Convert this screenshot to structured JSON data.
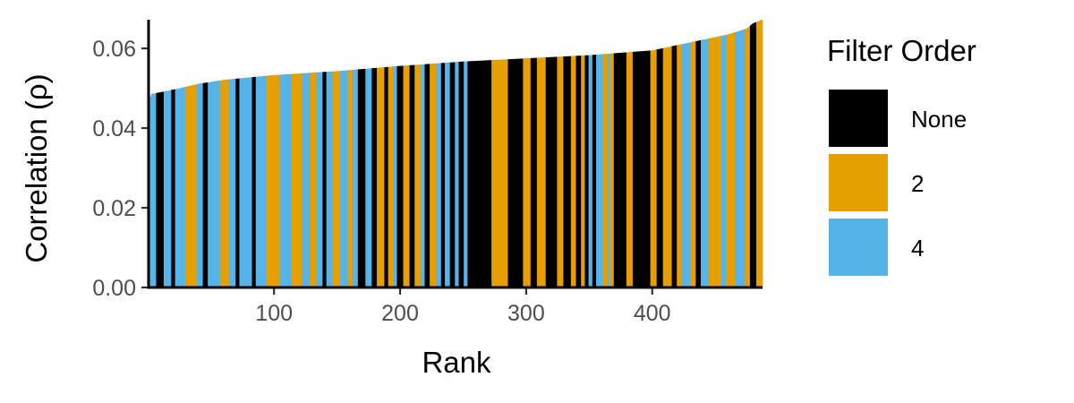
{
  "chart_data": {
    "type": "bar",
    "title": "",
    "xlabel": "Rank",
    "ylabel": "Correlation (ρ)",
    "xlim": [
      0.5,
      487.5
    ],
    "ylim": [
      0,
      0.0672
    ],
    "x_ticks": [
      100,
      200,
      300,
      400
    ],
    "y_ticks": [
      0,
      0.02,
      0.04,
      0.06
    ],
    "x_tick_labels": [
      "100",
      "200",
      "300",
      "400"
    ],
    "y_tick_labels": [
      "0.00",
      "0.02",
      "0.04",
      "0.06"
    ],
    "grid": false,
    "legend": {
      "title": "Filter Order",
      "placement": "right",
      "entries": [
        {
          "key": "None",
          "label": "None",
          "color": "#000000"
        },
        {
          "key": "2",
          "label": "2",
          "color": "#E69F00"
        },
        {
          "key": "4",
          "label": "4",
          "color": "#56B4E9"
        }
      ]
    },
    "n_bars": 487,
    "value_profile": [
      [
        1,
        0.0474
      ],
      [
        3,
        0.0486
      ],
      [
        10,
        0.049
      ],
      [
        25,
        0.05
      ],
      [
        40,
        0.0511
      ],
      [
        60,
        0.0521
      ],
      [
        100,
        0.0533
      ],
      [
        150,
        0.0543
      ],
      [
        200,
        0.0556
      ],
      [
        250,
        0.0567
      ],
      [
        300,
        0.0575
      ],
      [
        350,
        0.0583
      ],
      [
        400,
        0.0595
      ],
      [
        430,
        0.0615
      ],
      [
        460,
        0.0635
      ],
      [
        475,
        0.065
      ],
      [
        480,
        0.0663
      ],
      [
        487,
        0.0672
      ]
    ],
    "category_runs": [
      [
        "4",
        1,
        6
      ],
      [
        "None",
        7,
        12
      ],
      [
        "4",
        13,
        18
      ],
      [
        "None",
        19,
        21
      ],
      [
        "4",
        22,
        29
      ],
      [
        "2",
        30,
        38
      ],
      [
        "4",
        39,
        43
      ],
      [
        "None",
        44,
        47
      ],
      [
        "4",
        48,
        57
      ],
      [
        "2",
        58,
        64
      ],
      [
        "4",
        65,
        69
      ],
      [
        "None",
        70,
        72
      ],
      [
        "4",
        73,
        82
      ],
      [
        "None",
        83,
        85
      ],
      [
        "4",
        86,
        93
      ],
      [
        "2",
        94,
        104
      ],
      [
        "4",
        105,
        113
      ],
      [
        "2",
        114,
        122
      ],
      [
        "4",
        123,
        128
      ],
      [
        "2",
        129,
        133
      ],
      [
        "4",
        134,
        138
      ],
      [
        "None",
        139,
        141
      ],
      [
        "4",
        142,
        146
      ],
      [
        "2",
        147,
        152
      ],
      [
        "4",
        153,
        158
      ],
      [
        "2",
        159,
        162
      ],
      [
        "4",
        163,
        166
      ],
      [
        "None",
        167,
        172
      ],
      [
        "4",
        173,
        177
      ],
      [
        "None",
        178,
        181
      ],
      [
        "2",
        182,
        187
      ],
      [
        "None",
        188,
        190
      ],
      [
        "2",
        191,
        194
      ],
      [
        "4",
        195,
        197
      ],
      [
        "None",
        198,
        202
      ],
      [
        "2",
        203,
        207
      ],
      [
        "None",
        208,
        211
      ],
      [
        "2",
        212,
        216
      ],
      [
        "4",
        217,
        219
      ],
      [
        "None",
        220,
        223
      ],
      [
        "2",
        224,
        228
      ],
      [
        "4",
        229,
        232
      ],
      [
        "None",
        233,
        235
      ],
      [
        "4",
        236,
        239
      ],
      [
        "None",
        240,
        243
      ],
      [
        "4",
        244,
        246
      ],
      [
        "None",
        247,
        250
      ],
      [
        "4",
        251,
        253
      ],
      [
        "None",
        254,
        272
      ],
      [
        "2",
        273,
        285
      ],
      [
        "None",
        286,
        297
      ],
      [
        "2",
        298,
        303
      ],
      [
        "None",
        304,
        308
      ],
      [
        "2",
        309,
        315
      ],
      [
        "None",
        316,
        324
      ],
      [
        "2",
        325,
        329
      ],
      [
        "None",
        330,
        335
      ],
      [
        "2",
        336,
        339
      ],
      [
        "None",
        340,
        343
      ],
      [
        "2",
        344,
        346
      ],
      [
        "None",
        347,
        349
      ],
      [
        "4",
        350,
        352
      ],
      [
        "None",
        353,
        355
      ],
      [
        "4",
        356,
        360
      ],
      [
        "2",
        361,
        364
      ],
      [
        "4",
        365,
        366
      ],
      [
        "2",
        367,
        369
      ],
      [
        "None",
        370,
        379
      ],
      [
        "2",
        380,
        384
      ],
      [
        "None",
        385,
        398
      ],
      [
        "2",
        399,
        403
      ],
      [
        "None",
        404,
        408
      ],
      [
        "2",
        409,
        415
      ],
      [
        "None",
        416,
        419
      ],
      [
        "2",
        420,
        423
      ],
      [
        "4",
        424,
        430
      ],
      [
        "2",
        431,
        434
      ],
      [
        "None",
        435,
        438
      ],
      [
        "4",
        439,
        444
      ],
      [
        "2",
        445,
        454
      ],
      [
        "4",
        455,
        458
      ],
      [
        "2",
        459,
        465
      ],
      [
        "4",
        466,
        473
      ],
      [
        "2",
        474,
        477
      ],
      [
        "None",
        478,
        482
      ],
      [
        "2",
        483,
        487
      ]
    ]
  }
}
